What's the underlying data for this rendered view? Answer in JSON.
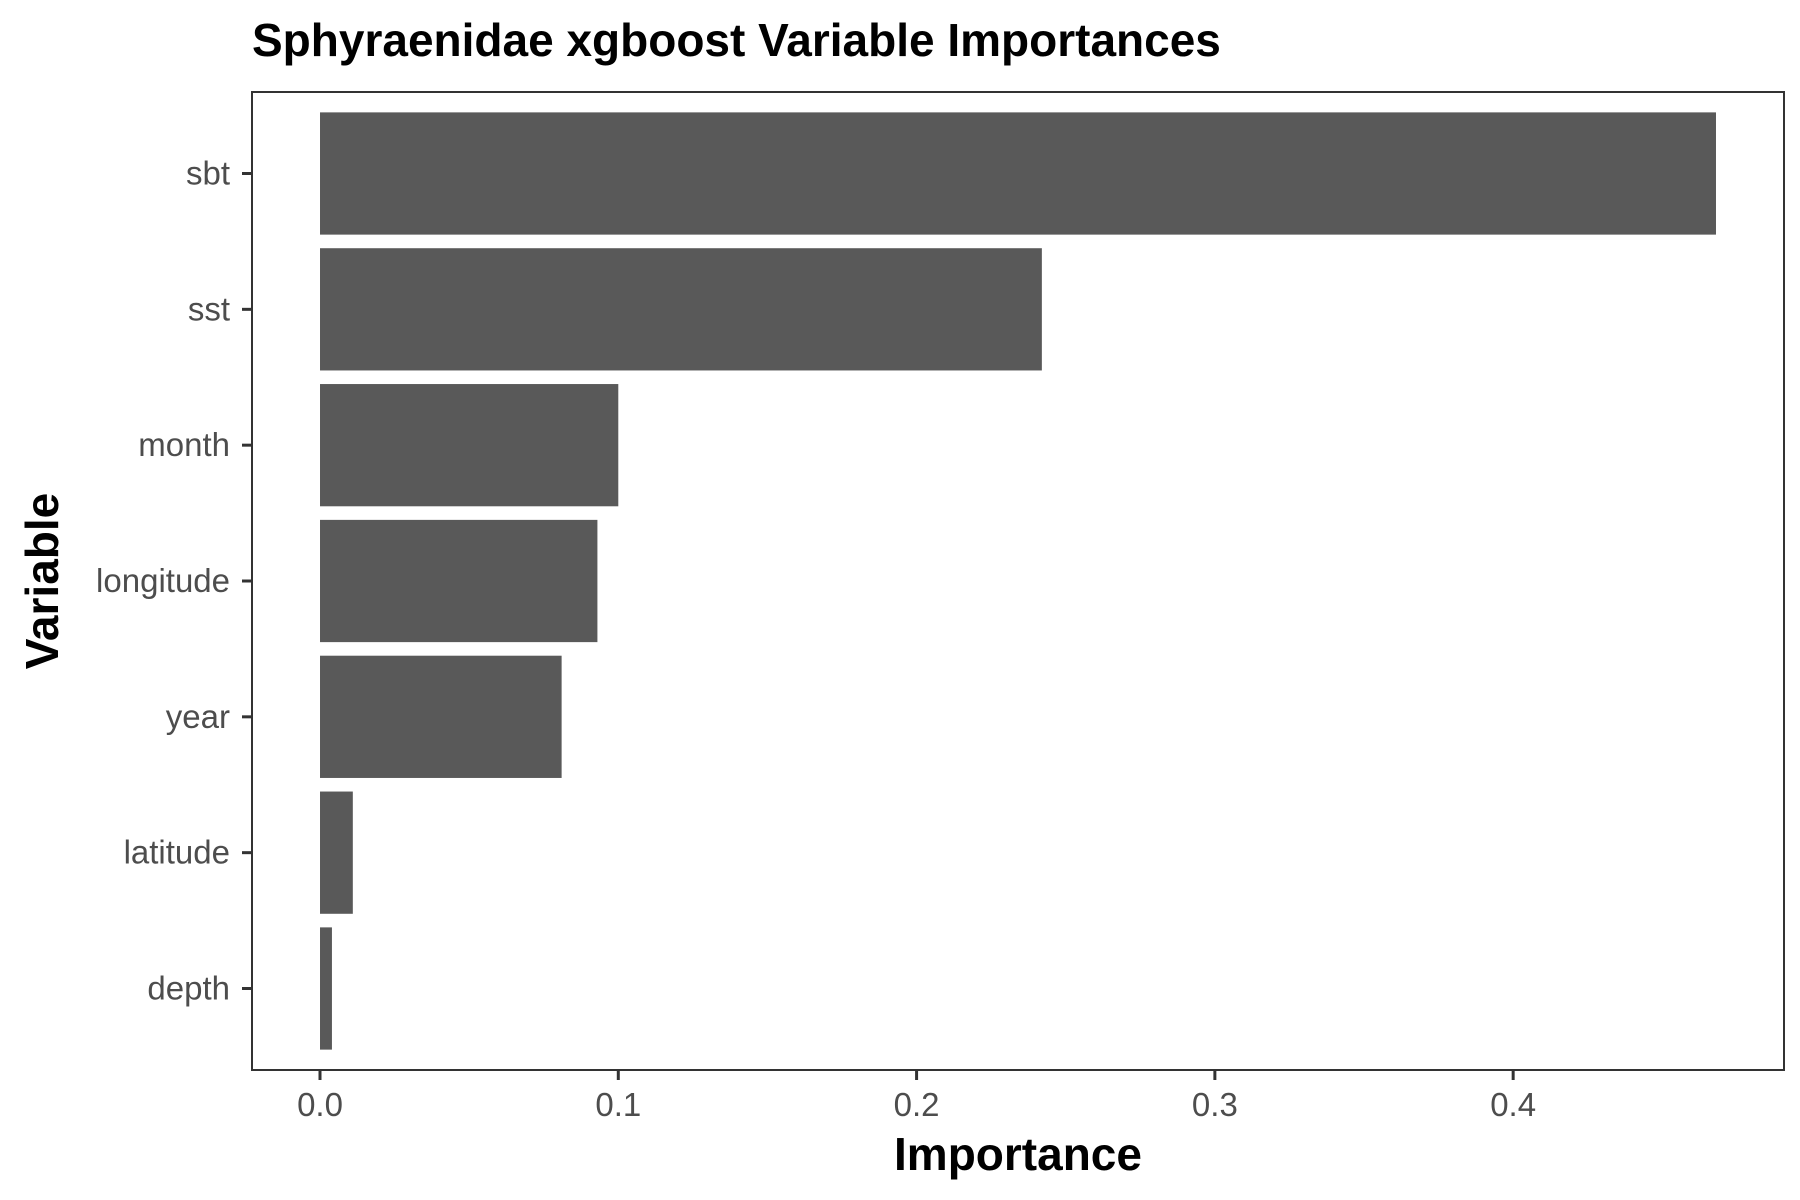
{
  "chart_data": {
    "type": "bar",
    "orientation": "horizontal",
    "title": "Sphyraenidae xgboost Variable Importances",
    "xlabel": "Importance",
    "ylabel": "Variable",
    "categories": [
      "sbt",
      "sst",
      "month",
      "longitude",
      "year",
      "latitude",
      "depth"
    ],
    "values": [
      0.468,
      0.242,
      0.1,
      0.093,
      0.081,
      0.011,
      0.004
    ],
    "xlim": [
      -0.0228,
      0.4908
    ],
    "xticks": [
      0,
      0.1,
      0.2,
      0.3,
      0.4
    ],
    "xtick_labels": [
      "0.0",
      "0.1",
      "0.2",
      "0.3",
      "0.4"
    ],
    "grid": false,
    "bar_color": "#595959",
    "panel_border_color": "#333333"
  }
}
